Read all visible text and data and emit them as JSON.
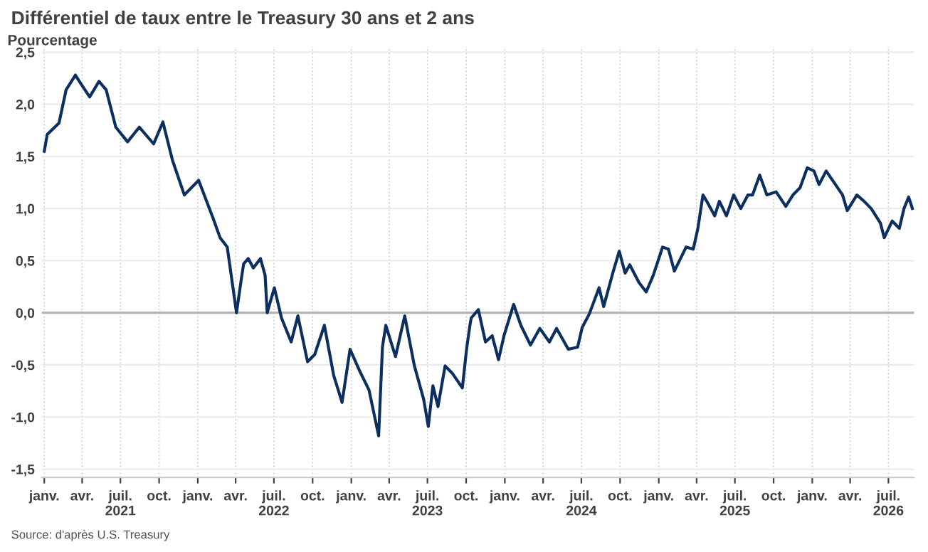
{
  "chart_data": {
    "type": "line",
    "title": "Différentiel de taux entre le Treasury 30 ans et 2 ans",
    "ylabel": "Pourcentage",
    "annotations": [
      "Source: d'après U.S. Treasury"
    ],
    "series": [
      {
        "color": "#0b2f5e",
        "x": [
          "2021-01-01",
          "2021-01-08",
          "2021-02-05",
          "2021-02-22",
          "2021-03-16",
          "2021-03-27",
          "2021-04-19",
          "2021-05-11",
          "2021-05-28",
          "2021-06-20",
          "2021-07-18",
          "2021-08-15",
          "2021-09-18",
          "2021-10-10",
          "2021-11-02",
          "2021-11-30",
          "2021-12-17",
          "2022-01-03",
          "2022-02-06",
          "2022-02-23",
          "2022-03-12",
          "2022-04-03",
          "2022-04-14",
          "2022-04-20",
          "2022-05-01",
          "2022-05-13",
          "2022-05-30",
          "2022-06-10",
          "2022-06-15",
          "2022-07-02",
          "2022-07-19",
          "2022-08-11",
          "2022-08-27",
          "2022-09-19",
          "2022-10-06",
          "2022-10-29",
          "2022-11-20",
          "2022-12-10",
          "2022-12-29",
          "2023-01-21",
          "2023-02-12",
          "2023-03-07",
          "2023-03-16",
          "2023-03-24",
          "2023-04-16",
          "2023-05-08",
          "2023-05-31",
          "2023-06-22",
          "2023-07-03",
          "2023-07-14",
          "2023-07-26",
          "2023-08-12",
          "2023-08-29",
          "2023-09-22",
          "2023-10-02",
          "2023-10-10",
          "2023-10-13",
          "2023-10-30",
          "2023-11-16",
          "2023-12-02",
          "2023-12-17",
          "2023-12-30",
          "2024-01-22",
          "2024-02-08",
          "2024-03-02",
          "2024-03-24",
          "2024-04-16",
          "2024-05-03",
          "2024-05-31",
          "2024-06-22",
          "2024-07-03",
          "2024-07-20",
          "2024-08-12",
          "2024-08-23",
          "2024-09-15",
          "2024-09-29",
          "2024-10-13",
          "2024-10-24",
          "2024-11-15",
          "2024-12-02",
          "2024-12-19",
          "2025-01-10",
          "2025-01-24",
          "2025-02-07",
          "2025-03-07",
          "2025-03-24",
          "2025-04-04",
          "2025-04-16",
          "2025-04-25",
          "2025-05-14",
          "2025-05-25",
          "2025-06-11",
          "2025-06-28",
          "2025-07-15",
          "2025-08-01",
          "2025-08-12",
          "2025-08-29",
          "2025-09-15",
          "2025-10-07",
          "2025-10-30",
          "2025-11-16",
          "2025-12-03",
          "2025-12-20",
          "2026-01-05",
          "2026-01-17",
          "2026-02-03",
          "2026-02-25",
          "2026-03-14",
          "2026-03-25",
          "2026-04-17",
          "2026-05-04",
          "2026-05-21",
          "2026-06-12",
          "2026-06-21",
          "2026-07-10",
          "2026-07-27",
          "2026-08-07",
          "2026-08-18",
          "2026-08-27"
        ],
        "values": [
          1.55,
          1.71,
          1.82,
          2.14,
          2.28,
          2.21,
          2.07,
          2.22,
          2.14,
          1.78,
          1.64,
          1.78,
          1.62,
          1.83,
          1.46,
          1.13,
          1.2,
          1.27,
          0.91,
          0.72,
          0.63,
          0.0,
          0.31,
          0.47,
          0.52,
          0.43,
          0.52,
          0.36,
          0.0,
          0.24,
          -0.05,
          -0.28,
          -0.03,
          -0.47,
          -0.4,
          -0.12,
          -0.6,
          -0.86,
          -0.35,
          -0.56,
          -0.74,
          -1.18,
          -0.33,
          -0.12,
          -0.42,
          -0.03,
          -0.51,
          -0.83,
          -1.09,
          -0.7,
          -0.9,
          -0.51,
          -0.58,
          -0.72,
          -0.35,
          -0.12,
          -0.05,
          0.03,
          -0.28,
          -0.22,
          -0.45,
          -0.22,
          0.08,
          -0.12,
          -0.31,
          -0.15,
          -0.28,
          -0.15,
          -0.35,
          -0.33,
          -0.14,
          -0.01,
          0.24,
          0.06,
          0.4,
          0.59,
          0.38,
          0.46,
          0.29,
          0.2,
          0.36,
          0.63,
          0.61,
          0.4,
          0.63,
          0.61,
          0.81,
          1.13,
          1.07,
          0.93,
          1.07,
          0.93,
          1.13,
          1.0,
          1.13,
          1.13,
          1.32,
          1.13,
          1.16,
          1.02,
          1.13,
          1.2,
          1.39,
          1.36,
          1.23,
          1.36,
          1.23,
          1.13,
          0.98,
          1.13,
          1.07,
          1.0,
          0.86,
          0.72,
          0.88,
          0.81,
          1.0,
          1.11,
          1.0
        ]
      }
    ],
    "xlim": [
      "2020-12-26",
      "2026-08-31"
    ],
    "xticks": [
      {
        "value": "2021-01-01",
        "label": "janv."
      },
      {
        "value": "2021-04-01",
        "label": "avr."
      },
      {
        "value": "2021-07-01",
        "label": "juil.\n2021"
      },
      {
        "value": "2021-10-01",
        "label": "oct."
      },
      {
        "value": "2022-01-01",
        "label": "janv."
      },
      {
        "value": "2022-04-01",
        "label": "avr."
      },
      {
        "value": "2022-07-01",
        "label": "juil.\n2022"
      },
      {
        "value": "2022-10-01",
        "label": "oct."
      },
      {
        "value": "2023-01-01",
        "label": "janv."
      },
      {
        "value": "2023-04-01",
        "label": "avr."
      },
      {
        "value": "2023-07-01",
        "label": "juil.\n2023"
      },
      {
        "value": "2023-10-01",
        "label": "oct."
      },
      {
        "value": "2024-01-01",
        "label": "janv."
      },
      {
        "value": "2024-04-01",
        "label": "avr."
      },
      {
        "value": "2024-07-01",
        "label": "juil.\n2024"
      },
      {
        "value": "2024-10-01",
        "label": "oct."
      },
      {
        "value": "2025-01-01",
        "label": "janv."
      },
      {
        "value": "2025-04-01",
        "label": "avr."
      },
      {
        "value": "2025-07-01",
        "label": "juil.\n2025"
      },
      {
        "value": "2025-10-01",
        "label": "oct."
      },
      {
        "value": "2026-01-01",
        "label": "janv."
      },
      {
        "value": "2026-04-01",
        "label": "avr."
      },
      {
        "value": "2026-07-01",
        "label": "juil.\n2026"
      }
    ],
    "ylim": [
      -1.58,
      2.55
    ],
    "yticks": [
      {
        "value": -1.5,
        "label": "-1,5"
      },
      {
        "value": -1.0,
        "label": "-1,0"
      },
      {
        "value": -0.5,
        "label": "-0,5"
      },
      {
        "value": 0,
        "label": "0,0"
      },
      {
        "value": 0.5,
        "label": "0,5"
      },
      {
        "value": 1.0,
        "label": "1,0"
      },
      {
        "value": 1.5,
        "label": "1,5"
      },
      {
        "value": 2.0,
        "label": "2,0"
      },
      {
        "value": 2.5,
        "label": "2,5"
      }
    ],
    "ref_lines": [
      {
        "axis": "y",
        "value": 0,
        "color": "#b4b4b4"
      }
    ],
    "grid": true,
    "line_style": "solid",
    "marker": "none",
    "legend": false
  }
}
